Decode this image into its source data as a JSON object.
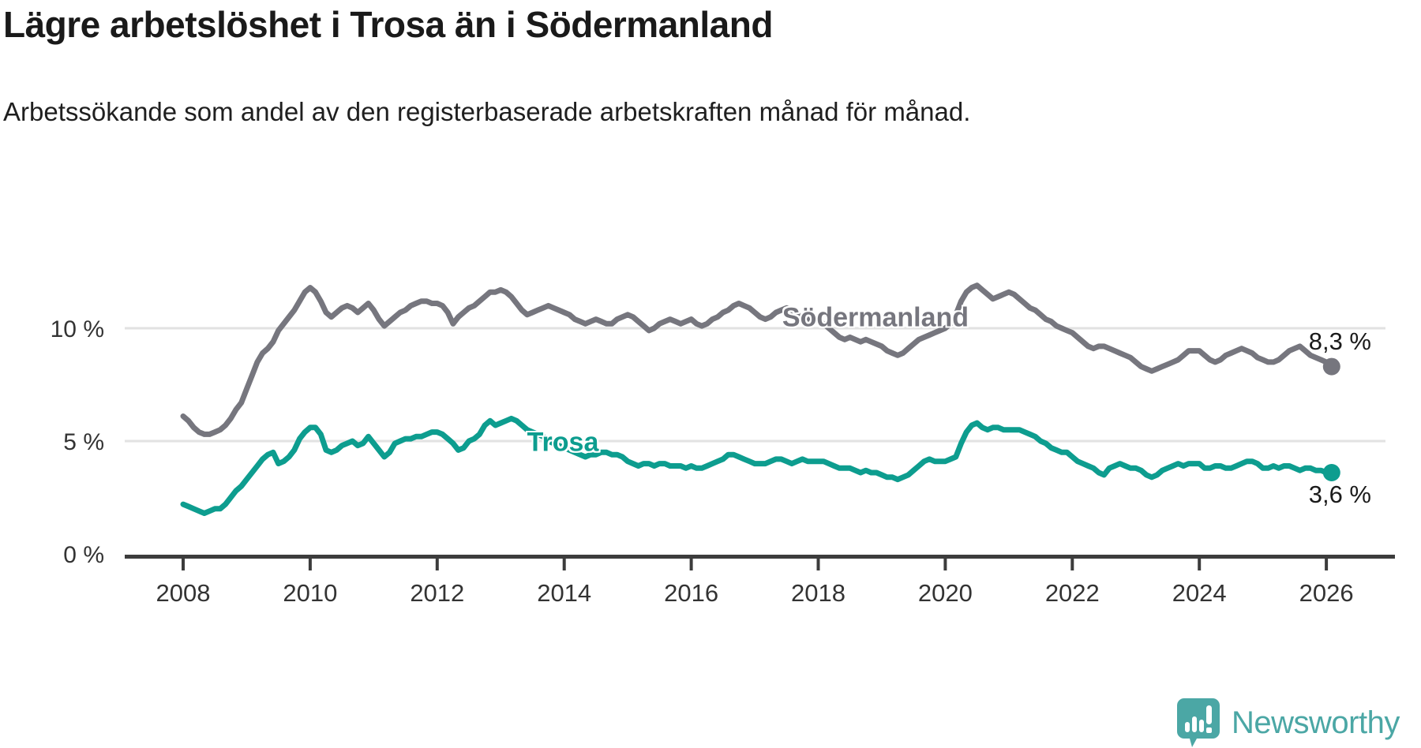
{
  "header": {
    "title": "Lägre arbetslöshet i Trosa än i Södermanland",
    "subtitle": "Arbetssökande som andel av den registerbaserade arbetskraften månad för månad."
  },
  "branding": {
    "name": "Newsworthy",
    "color": "#4ba7a5"
  },
  "chart_data": {
    "type": "line",
    "title": "Lägre arbetslöshet i Trosa än i Södermanland",
    "xlabel": "",
    "ylabel": "",
    "unit": "%",
    "grid": "horizontal-only",
    "legend_position": "inline-labels-on-lines",
    "x_start_year": 2008,
    "points_per_year": 12,
    "x_end": "2026-02",
    "xlim": [
      2008,
      2026.6
    ],
    "ylim": [
      0,
      13
    ],
    "x_ticks": [
      2008,
      2010,
      2012,
      2014,
      2016,
      2018,
      2020,
      2022,
      2024,
      2026
    ],
    "x_tick_labels": [
      "2008",
      "2010",
      "2012",
      "2014",
      "2016",
      "2018",
      "2020",
      "2022",
      "2024",
      "2026"
    ],
    "y_ticks": [
      {
        "label": "10 %",
        "value": 10,
        "gridline": true
      },
      {
        "label": "5 %",
        "value": 5,
        "gridline": true
      },
      {
        "label": "0 %",
        "value": 0,
        "gridline": false
      }
    ],
    "colors": {
      "gridline": "#e2e2e2",
      "axis": "#3c3c3c",
      "tick_label": "#333333"
    },
    "series": [
      {
        "name": "Södermanland",
        "color": "#76767e",
        "end_label": "8,3 %",
        "end_value": 8.3,
        "values": [
          6.1,
          5.9,
          5.6,
          5.4,
          5.3,
          5.3,
          5.4,
          5.5,
          5.7,
          6.0,
          6.4,
          6.7,
          7.3,
          7.9,
          8.5,
          8.9,
          9.1,
          9.4,
          9.9,
          10.2,
          10.5,
          10.8,
          11.2,
          11.6,
          11.8,
          11.6,
          11.2,
          10.7,
          10.5,
          10.7,
          10.9,
          11.0,
          10.9,
          10.7,
          10.9,
          11.1,
          10.8,
          10.4,
          10.1,
          10.3,
          10.5,
          10.7,
          10.8,
          11.0,
          11.1,
          11.2,
          11.2,
          11.1,
          11.1,
          11.0,
          10.7,
          10.2,
          10.5,
          10.7,
          10.9,
          11.0,
          11.2,
          11.4,
          11.6,
          11.6,
          11.7,
          11.6,
          11.4,
          11.1,
          10.8,
          10.6,
          10.7,
          10.8,
          10.9,
          11.0,
          10.9,
          10.8,
          10.7,
          10.6,
          10.4,
          10.3,
          10.2,
          10.3,
          10.4,
          10.3,
          10.2,
          10.2,
          10.4,
          10.5,
          10.6,
          10.5,
          10.3,
          10.1,
          9.9,
          10.0,
          10.2,
          10.3,
          10.4,
          10.3,
          10.2,
          10.3,
          10.4,
          10.2,
          10.1,
          10.2,
          10.4,
          10.5,
          10.7,
          10.8,
          11.0,
          11.1,
          11.0,
          10.9,
          10.7,
          10.5,
          10.4,
          10.5,
          10.7,
          10.8,
          10.9,
          10.8,
          10.6,
          10.5,
          10.4,
          10.3,
          10.3,
          10.2,
          10.0,
          9.8,
          9.6,
          9.5,
          9.6,
          9.5,
          9.4,
          9.5,
          9.4,
          9.3,
          9.2,
          9.0,
          8.9,
          8.8,
          8.9,
          9.1,
          9.3,
          9.5,
          9.6,
          9.7,
          9.8,
          9.9,
          10.0,
          10.2,
          10.6,
          11.2,
          11.6,
          11.8,
          11.9,
          11.7,
          11.5,
          11.3,
          11.4,
          11.5,
          11.6,
          11.5,
          11.3,
          11.1,
          10.9,
          10.8,
          10.6,
          10.4,
          10.3,
          10.1,
          10.0,
          9.9,
          9.8,
          9.6,
          9.4,
          9.2,
          9.1,
          9.2,
          9.2,
          9.1,
          9.0,
          8.9,
          8.8,
          8.7,
          8.5,
          8.3,
          8.2,
          8.1,
          8.2,
          8.3,
          8.4,
          8.5,
          8.6,
          8.8,
          9.0,
          9.0,
          9.0,
          8.8,
          8.6,
          8.5,
          8.6,
          8.8,
          8.9,
          9.0,
          9.1,
          9.0,
          8.9,
          8.7,
          8.6,
          8.5,
          8.5,
          8.6,
          8.8,
          9.0,
          9.1,
          9.2,
          9.0,
          8.8,
          8.7,
          8.6,
          8.5,
          8.3
        ]
      },
      {
        "name": "Trosa",
        "color": "#0d9d8f",
        "end_label": "3,6 %",
        "end_value": 3.6,
        "values": [
          2.2,
          2.1,
          2.0,
          1.9,
          1.8,
          1.9,
          2.0,
          2.0,
          2.2,
          2.5,
          2.8,
          3.0,
          3.3,
          3.6,
          3.9,
          4.2,
          4.4,
          4.5,
          4.0,
          4.1,
          4.3,
          4.6,
          5.1,
          5.4,
          5.6,
          5.6,
          5.3,
          4.6,
          4.5,
          4.6,
          4.8,
          4.9,
          5.0,
          4.8,
          4.9,
          5.2,
          4.9,
          4.6,
          4.3,
          4.5,
          4.9,
          5.0,
          5.1,
          5.1,
          5.2,
          5.2,
          5.3,
          5.4,
          5.4,
          5.3,
          5.1,
          4.9,
          4.6,
          4.7,
          5.0,
          5.1,
          5.3,
          5.7,
          5.9,
          5.7,
          5.8,
          5.9,
          6.0,
          5.9,
          5.7,
          5.5,
          5.4,
          5.3,
          5.2,
          5.0,
          4.9,
          4.8,
          4.7,
          4.6,
          4.5,
          4.4,
          4.3,
          4.4,
          4.4,
          4.5,
          4.5,
          4.4,
          4.4,
          4.3,
          4.1,
          4.0,
          3.9,
          4.0,
          4.0,
          3.9,
          4.0,
          4.0,
          3.9,
          3.9,
          3.9,
          3.8,
          3.9,
          3.8,
          3.8,
          3.9,
          4.0,
          4.1,
          4.2,
          4.4,
          4.4,
          4.3,
          4.2,
          4.1,
          4.0,
          4.0,
          4.0,
          4.1,
          4.2,
          4.2,
          4.1,
          4.0,
          4.1,
          4.2,
          4.1,
          4.1,
          4.1,
          4.1,
          4.0,
          3.9,
          3.8,
          3.8,
          3.8,
          3.7,
          3.6,
          3.7,
          3.6,
          3.6,
          3.5,
          3.4,
          3.4,
          3.3,
          3.4,
          3.5,
          3.7,
          3.9,
          4.1,
          4.2,
          4.1,
          4.1,
          4.1,
          4.2,
          4.3,
          4.9,
          5.4,
          5.7,
          5.8,
          5.6,
          5.5,
          5.6,
          5.6,
          5.5,
          5.5,
          5.5,
          5.5,
          5.4,
          5.3,
          5.2,
          5.0,
          4.9,
          4.7,
          4.6,
          4.5,
          4.5,
          4.3,
          4.1,
          4.0,
          3.9,
          3.8,
          3.6,
          3.5,
          3.8,
          3.9,
          4.0,
          3.9,
          3.8,
          3.8,
          3.7,
          3.5,
          3.4,
          3.5,
          3.7,
          3.8,
          3.9,
          4.0,
          3.9,
          4.0,
          4.0,
          4.0,
          3.8,
          3.8,
          3.9,
          3.9,
          3.8,
          3.8,
          3.9,
          4.0,
          4.1,
          4.1,
          4.0,
          3.8,
          3.8,
          3.9,
          3.8,
          3.9,
          3.9,
          3.8,
          3.7,
          3.8,
          3.8,
          3.7,
          3.7,
          3.6,
          3.6
        ]
      }
    ]
  }
}
